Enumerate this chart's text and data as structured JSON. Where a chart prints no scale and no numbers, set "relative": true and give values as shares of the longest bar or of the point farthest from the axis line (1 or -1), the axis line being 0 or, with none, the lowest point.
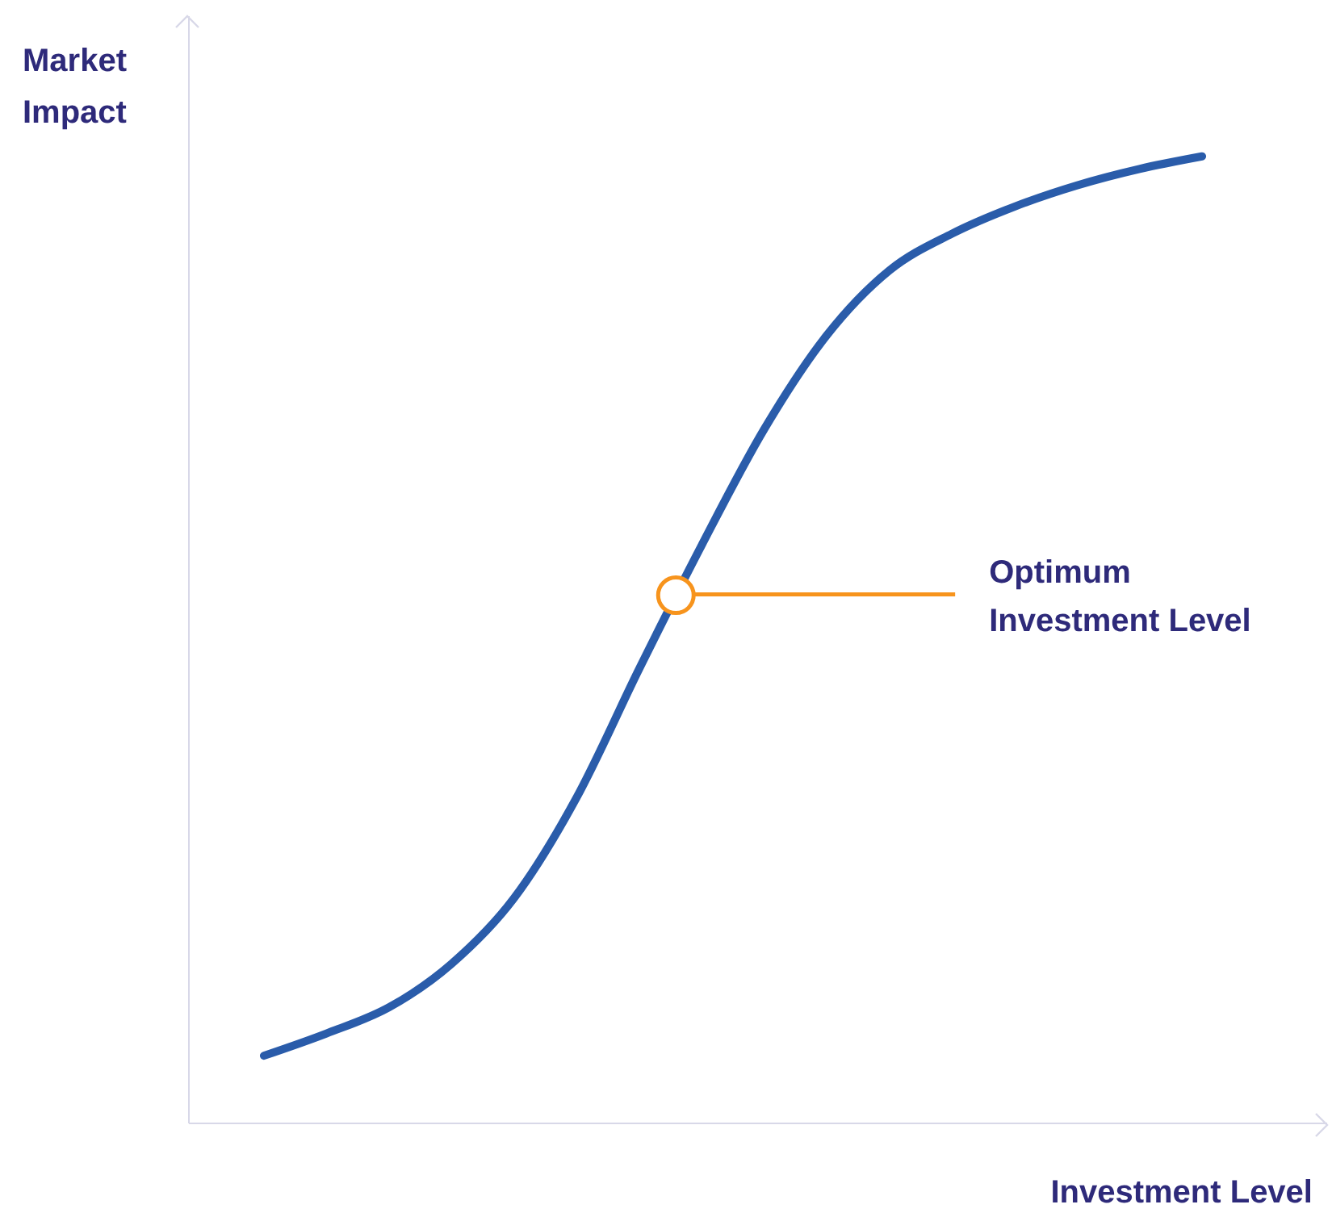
{
  "chart_data": {
    "type": "line",
    "relative": true,
    "xlabel": "Investment Level",
    "ylabel": "Market Impact",
    "categories": [
      null,
      null,
      null,
      null,
      null,
      null,
      null,
      null,
      null,
      null,
      null,
      null,
      null,
      null,
      null,
      null
    ],
    "series": [
      {
        "color": "#2a5caa",
        "values": [
          0.07,
          0.093,
          0.12,
          0.165,
          0.233,
          0.337,
          0.47,
          0.598,
          0.718,
          0.815,
          0.882,
          0.92,
          0.948,
          0.97,
          0.987,
          1.0
        ]
      }
    ],
    "ref_lines": [
      {
        "axis": "y",
        "value": 0.547,
        "label": "Optimum\nInvestment Level",
        "color": "#f7941d"
      }
    ],
    "marker": "none",
    "grid": false,
    "legend": false
  }
}
